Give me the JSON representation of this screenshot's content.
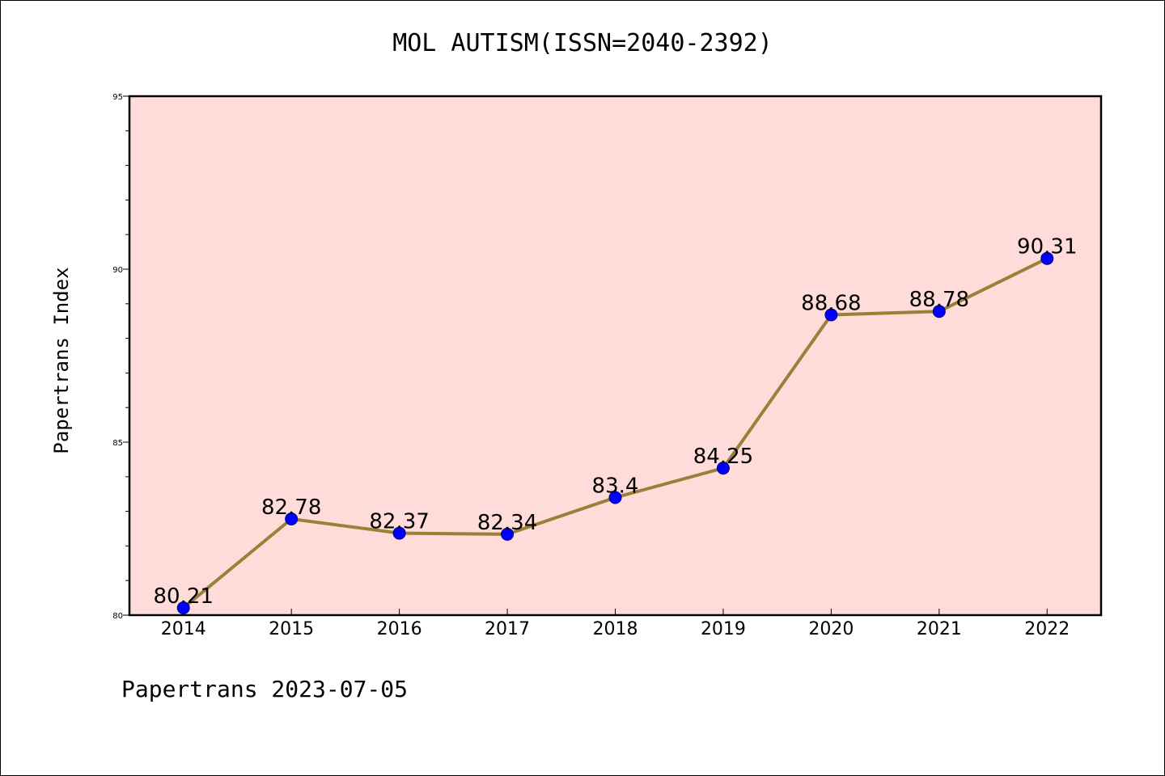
{
  "chart_data": {
    "type": "line",
    "title": "MOL AUTISM(ISSN=2040-2392)",
    "ylabel": "Papertrans Index",
    "xlabel": "",
    "x": [
      "2014",
      "2015",
      "2016",
      "2017",
      "2018",
      "2019",
      "2020",
      "2021",
      "2022"
    ],
    "values": [
      80.21,
      82.78,
      82.37,
      82.34,
      83.4,
      84.25,
      88.68,
      88.78,
      90.31
    ],
    "data_labels": [
      "80.21",
      "82.78",
      "82.37",
      "82.34",
      "83.4",
      "84.25",
      "88.68",
      "88.78",
      "90.31"
    ],
    "ylim": [
      80,
      95
    ],
    "yticks": [
      "80",
      "85",
      "90",
      "95"
    ],
    "grid": false,
    "colors": {
      "plot_background": "#ffdcd9",
      "line": "#9a8038",
      "marker": "#0000ff"
    }
  },
  "footer": "Papertrans 2023-07-05"
}
